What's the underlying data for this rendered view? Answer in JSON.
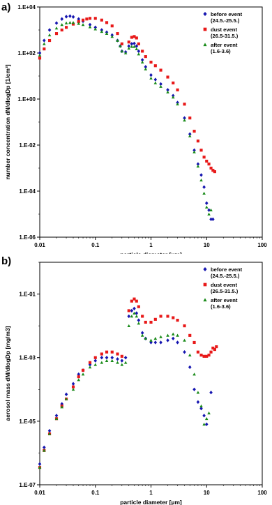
{
  "chart_data": [
    {
      "panel": "a)",
      "type": "scatter",
      "xlabel": "particle diameter [µm]",
      "ylabel": "number concentration dN/dlogDp [1/cm³]",
      "xscale": "log",
      "yscale": "log",
      "xlim": [
        0.01,
        100
      ],
      "ylim": [
        1e-06,
        10000
      ],
      "xticks": [
        "0.01",
        "0.1",
        "1",
        "10",
        "100"
      ],
      "yticks": [
        "1.E-06",
        "1.E-04",
        "1.E-02",
        "1.E+00",
        "1.E+02",
        "1.E+04"
      ],
      "legend_position": "top-right",
      "series": [
        {
          "name": "before event",
          "period": "(24.5.-25.5.)",
          "color": "#1515b0",
          "marker": "diamond",
          "x": [
            0.01,
            0.012,
            0.015,
            0.02,
            0.025,
            0.03,
            0.035,
            0.04,
            0.05,
            0.06,
            0.08,
            0.1,
            0.13,
            0.16,
            0.2,
            0.25,
            0.28,
            0.3,
            0.35,
            0.4,
            0.45,
            0.5,
            0.55,
            0.6,
            0.7,
            0.8,
            1.0,
            1.2,
            1.5,
            2.0,
            2.5,
            3.0,
            4.0,
            5.0,
            6.0,
            7.0,
            8.0,
            9.0,
            10.0,
            11.0,
            12.0,
            13.0
          ],
          "y": [
            100,
            350,
            1000,
            2000,
            3000,
            3800,
            4000,
            3700,
            3000,
            2400,
            1700,
            1300,
            1000,
            800,
            600,
            350,
            200,
            120,
            110,
            200,
            250,
            260,
            200,
            120,
            50,
            25,
            11,
            7,
            4.5,
            2.5,
            1.4,
            0.7,
            0.15,
            0.03,
            0.006,
            0.0015,
            0.0005,
            0.00015,
            3e-05,
            1.5e-05,
            6e-06,
            6e-06
          ]
        },
        {
          "name": "dust event",
          "period": "(26.5-31.5.)",
          "color": "#e81919",
          "marker": "square",
          "x": [
            0.01,
            0.012,
            0.015,
            0.02,
            0.025,
            0.03,
            0.04,
            0.05,
            0.06,
            0.07,
            0.08,
            0.1,
            0.13,
            0.16,
            0.2,
            0.25,
            0.3,
            0.4,
            0.45,
            0.5,
            0.55,
            0.6,
            0.7,
            0.8,
            1.0,
            1.2,
            1.5,
            2.0,
            2.5,
            3.0,
            4.0,
            5.0,
            6.0,
            7.0,
            8.0,
            9.0,
            10.0,
            11.0,
            12.0,
            13.0,
            14.0
          ],
          "y": [
            60,
            150,
            350,
            700,
            1000,
            1300,
            1800,
            2300,
            2700,
            3000,
            3200,
            3200,
            2700,
            2100,
            1500,
            700,
            250,
            300,
            480,
            520,
            450,
            250,
            120,
            70,
            40,
            28,
            18,
            9,
            5,
            2.5,
            0.6,
            0.15,
            0.04,
            0.015,
            0.006,
            0.003,
            0.002,
            0.0015,
            0.001,
            0.0008,
            0.0007
          ]
        },
        {
          "name": "after event",
          "period": "(1.6-3.6)",
          "color": "#188a18",
          "marker": "triangle",
          "x": [
            0.01,
            0.012,
            0.015,
            0.02,
            0.025,
            0.03,
            0.035,
            0.04,
            0.05,
            0.06,
            0.08,
            0.1,
            0.13,
            0.16,
            0.2,
            0.25,
            0.28,
            0.3,
            0.35,
            0.4,
            0.45,
            0.5,
            0.55,
            0.6,
            0.7,
            0.8,
            1.0,
            1.2,
            1.5,
            2.0,
            2.5,
            3.0,
            4.0,
            5.0,
            6.0,
            7.0,
            8.0,
            9.0,
            10.0,
            11.0,
            12.0
          ],
          "y": [
            80,
            250,
            600,
            1200,
            1700,
            2000,
            2100,
            2100,
            1900,
            1700,
            1350,
            1100,
            850,
            700,
            520,
            350,
            200,
            120,
            100,
            160,
            190,
            190,
            150,
            90,
            40,
            20,
            8,
            5,
            3.5,
            2,
            1.2,
            0.6,
            0.12,
            0.025,
            0.005,
            0.0012,
            0.0003,
            8e-05,
            2e-05,
            1e-05,
            1.5e-05
          ]
        }
      ]
    },
    {
      "panel": "b)",
      "type": "scatter",
      "xlabel": "particle diameter [µm]",
      "ylabel": "aerosol  mass dM/dlogDp [mg/m3]",
      "xscale": "log",
      "yscale": "log",
      "xlim": [
        0.01,
        100
      ],
      "ylim": [
        1e-07,
        1
      ],
      "xticks": [
        "0.01",
        "0.1",
        "1",
        "10",
        "100"
      ],
      "yticks": [
        "1.E-07",
        "1.E-05",
        "1.E-03",
        "1.E-01"
      ],
      "legend_position": "top-right",
      "series": [
        {
          "name": "before event",
          "period": "(24.5.-25.5.)",
          "color": "#1515b0",
          "marker": "diamond",
          "x": [
            0.01,
            0.012,
            0.015,
            0.02,
            0.025,
            0.03,
            0.04,
            0.05,
            0.06,
            0.08,
            0.1,
            0.13,
            0.16,
            0.2,
            0.25,
            0.3,
            0.35,
            0.4,
            0.45,
            0.5,
            0.55,
            0.6,
            0.7,
            0.8,
            1.0,
            1.2,
            1.5,
            2.0,
            2.5,
            3.0,
            4.0,
            5.0,
            6.0,
            7.0,
            8.0,
            9.0,
            10.0,
            12.0
          ],
          "y": [
            4.5e-07,
            1.5e-06,
            5e-06,
            1.5e-05,
            3.5e-05,
            7e-05,
            0.00015,
            0.0003,
            0.0004,
            0.0006,
            0.0008,
            0.001,
            0.001,
            0.001,
            0.0009,
            0.0008,
            0.001,
            0.02,
            0.03,
            0.035,
            0.025,
            0.015,
            0.006,
            0.004,
            0.003,
            0.003,
            0.003,
            0.0035,
            0.004,
            0.003,
            0.0015,
            0.0005,
            0.0001,
            4e-05,
            2.5e-05,
            1.5e-05,
            8e-06,
            8e-05
          ]
        },
        {
          "name": "dust event",
          "period": "(26.5-31.5.)",
          "color": "#e81919",
          "marker": "square",
          "x": [
            0.01,
            0.012,
            0.015,
            0.02,
            0.025,
            0.03,
            0.04,
            0.05,
            0.06,
            0.08,
            0.1,
            0.13,
            0.16,
            0.2,
            0.25,
            0.3,
            0.4,
            0.45,
            0.5,
            0.55,
            0.6,
            0.7,
            0.8,
            1.0,
            1.2,
            1.5,
            2.0,
            2.5,
            3.0,
            4.0,
            5.0,
            6.0,
            7.0,
            8.0,
            9.0,
            10.0,
            11.0,
            12.0,
            13.0,
            14.0,
            15.0
          ],
          "y": [
            3.5e-07,
            1.2e-06,
            4e-06,
            1.2e-05,
            3e-05,
            5e-05,
            0.00012,
            0.00025,
            0.0004,
            0.0007,
            0.001,
            0.0013,
            0.0015,
            0.0015,
            0.0013,
            0.0011,
            0.03,
            0.06,
            0.07,
            0.06,
            0.04,
            0.02,
            0.013,
            0.013,
            0.016,
            0.02,
            0.02,
            0.018,
            0.015,
            0.01,
            0.005,
            0.003,
            0.0015,
            0.0012,
            0.0011,
            0.0011,
            0.0012,
            0.0015,
            0.002,
            0.0018,
            0.0022
          ]
        },
        {
          "name": "after event",
          "period": "(1.6-3.6)",
          "color": "#188a18",
          "marker": "triangle",
          "x": [
            0.01,
            0.012,
            0.015,
            0.02,
            0.025,
            0.03,
            0.04,
            0.05,
            0.06,
            0.08,
            0.1,
            0.13,
            0.16,
            0.2,
            0.25,
            0.3,
            0.35,
            0.4,
            0.45,
            0.5,
            0.55,
            0.6,
            0.7,
            0.8,
            1.0,
            1.2,
            1.5,
            2.0,
            2.5,
            3.0,
            4.0,
            5.0,
            6.0,
            7.0,
            8.0,
            9.0,
            10.0,
            11.0
          ],
          "y": [
            3.5e-07,
            1.2e-06,
            4e-06,
            1.2e-05,
            2.8e-05,
            5e-05,
            0.0001,
            0.0002,
            0.0003,
            0.0005,
            0.0006,
            0.0007,
            0.0008,
            0.0008,
            0.0007,
            0.0006,
            0.0007,
            0.01,
            0.02,
            0.025,
            0.02,
            0.012,
            0.005,
            0.004,
            0.0035,
            0.004,
            0.0045,
            0.005,
            0.0055,
            0.005,
            0.0035,
            0.0012,
            0.0003,
            8e-05,
            3e-05,
            8e-06,
            1.2e-05,
            1.8e-05
          ]
        }
      ]
    }
  ]
}
